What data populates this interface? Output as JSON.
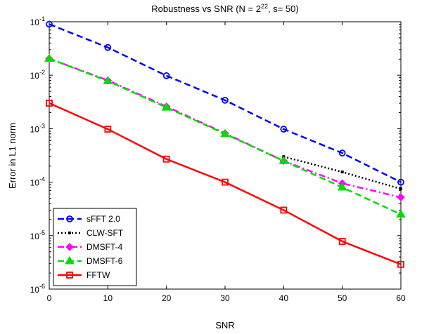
{
  "chart_data": {
    "type": "line",
    "title_base": "Robustness vs SNR (N = 2",
    "title_exp": "22",
    "title_tail": ", s= 50)",
    "xlabel": "SNR",
    "ylabel": "Error in L1 norm",
    "x_scale": "linear",
    "y_scale": "log",
    "xlim": [
      0,
      60
    ],
    "ylim_exp": [
      -6,
      -1
    ],
    "x_ticks": [
      "0",
      "10",
      "20",
      "30",
      "40",
      "50",
      "60"
    ],
    "y_tick_base": "10",
    "y_tick_exps": [
      "-1",
      "-2",
      "-3",
      "-4",
      "-5",
      "-6"
    ],
    "grid": false,
    "legend_position": "bottom-left",
    "series": [
      {
        "name": "sFFT 2.0",
        "color": "#0000ff",
        "line_style": "dashed",
        "marker": "circle",
        "x": [
          0,
          10,
          20,
          30,
          40,
          50,
          60
        ],
        "y": [
          0.09,
          0.033,
          0.0098,
          0.0034,
          0.00098,
          0.00035,
          0.0001
        ]
      },
      {
        "name": "CLW-SFT",
        "color": "#000000",
        "line_style": "dotted",
        "marker": "point",
        "x": [
          40,
          50,
          60
        ],
        "y": [
          0.0003,
          0.000155,
          7.5e-05
        ]
      },
      {
        "name": "DMSFT-4",
        "color": "#ff00ff",
        "line_style": "dashdot",
        "marker": "diamond",
        "x": [
          0,
          10,
          20,
          30,
          40,
          50,
          60
        ],
        "y": [
          0.0205,
          0.008,
          0.0026,
          0.00082,
          0.00025,
          9.5e-05,
          5.2e-05
        ]
      },
      {
        "name": "DMSFT-6",
        "color": "#00dd00",
        "line_style": "dashed",
        "marker": "triangle",
        "x": [
          0,
          10,
          20,
          30,
          40,
          50,
          60
        ],
        "y": [
          0.0205,
          0.0078,
          0.0025,
          0.0008,
          0.00025,
          8e-05,
          2.5e-05
        ]
      },
      {
        "name": "FFTW",
        "color": "#ff0000",
        "line_style": "solid",
        "marker": "square",
        "x": [
          0,
          10,
          20,
          30,
          40,
          50,
          60
        ],
        "y": [
          0.003,
          0.00098,
          0.00027,
          0.0001,
          3e-05,
          7.8e-06,
          2.9e-06
        ]
      }
    ]
  }
}
